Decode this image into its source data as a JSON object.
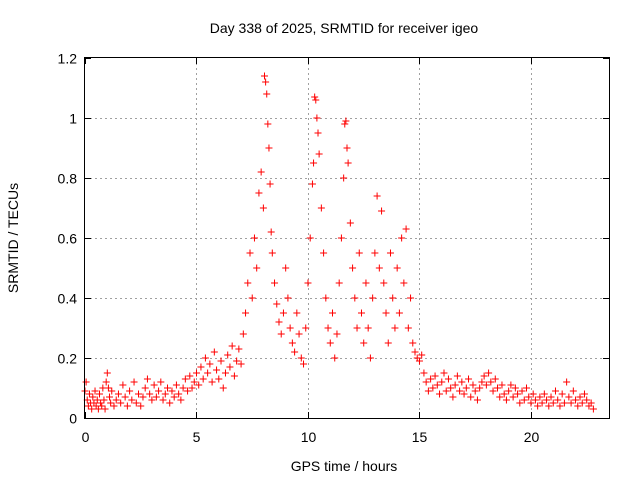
{
  "chart_data": {
    "type": "scatter",
    "title": "Day 338 of 2025, SRMTID for receiver igeo",
    "xlabel": "GPS time / hours",
    "ylabel": "SRMTID / TECUs",
    "xlim": [
      0,
      23.5
    ],
    "ylim": [
      0,
      1.2
    ],
    "x_ticks": [
      0,
      5,
      10,
      15,
      20
    ],
    "x_tick_labels": [
      "0",
      "5",
      "10",
      "15",
      "20"
    ],
    "y_ticks": [
      0,
      0.2,
      0.4,
      0.6,
      0.8,
      1.0,
      1.2
    ],
    "y_tick_labels": [
      "0",
      "0.2",
      "0.4",
      "0.6",
      "0.8",
      "1",
      "1.2"
    ],
    "grid": true,
    "marker": "+",
    "color": "#ff0000",
    "series": [
      {
        "name": "SRMTID",
        "points": [
          [
            0.0,
            0.09
          ],
          [
            0.05,
            0.12
          ],
          [
            0.1,
            0.06
          ],
          [
            0.15,
            0.04
          ],
          [
            0.2,
            0.08
          ],
          [
            0.25,
            0.05
          ],
          [
            0.3,
            0.03
          ],
          [
            0.35,
            0.07
          ],
          [
            0.4,
            0.05
          ],
          [
            0.45,
            0.09
          ],
          [
            0.5,
            0.04
          ],
          [
            0.55,
            0.06
          ],
          [
            0.6,
            0.03
          ],
          [
            0.65,
            0.08
          ],
          [
            0.7,
            0.05
          ],
          [
            0.75,
            0.04
          ],
          [
            0.8,
            0.1
          ],
          [
            0.85,
            0.06
          ],
          [
            0.9,
            0.03
          ],
          [
            0.95,
            0.12
          ],
          [
            1.0,
            0.15
          ],
          [
            1.05,
            0.1
          ],
          [
            1.1,
            0.07
          ],
          [
            1.15,
            0.05
          ],
          [
            1.2,
            0.09
          ],
          [
            1.3,
            0.04
          ],
          [
            1.4,
            0.06
          ],
          [
            1.5,
            0.08
          ],
          [
            1.6,
            0.05
          ],
          [
            1.7,
            0.11
          ],
          [
            1.8,
            0.07
          ],
          [
            1.9,
            0.04
          ],
          [
            2.0,
            0.09
          ],
          [
            2.1,
            0.06
          ],
          [
            2.2,
            0.12
          ],
          [
            2.3,
            0.05
          ],
          [
            2.4,
            0.08
          ],
          [
            2.5,
            0.04
          ],
          [
            2.6,
            0.07
          ],
          [
            2.7,
            0.1
          ],
          [
            2.8,
            0.13
          ],
          [
            2.9,
            0.08
          ],
          [
            3.0,
            0.06
          ],
          [
            3.1,
            0.11
          ],
          [
            3.2,
            0.07
          ],
          [
            3.3,
            0.09
          ],
          [
            3.4,
            0.12
          ],
          [
            3.5,
            0.06
          ],
          [
            3.6,
            0.08
          ],
          [
            3.7,
            0.1
          ],
          [
            3.8,
            0.05
          ],
          [
            3.9,
            0.09
          ],
          [
            4.0,
            0.07
          ],
          [
            4.1,
            0.11
          ],
          [
            4.2,
            0.08
          ],
          [
            4.3,
            0.06
          ],
          [
            4.4,
            0.1
          ],
          [
            4.5,
            0.13
          ],
          [
            4.6,
            0.09
          ],
          [
            4.7,
            0.14
          ],
          [
            4.8,
            0.1
          ],
          [
            4.9,
            0.12
          ],
          [
            5.0,
            0.15
          ],
          [
            5.1,
            0.11
          ],
          [
            5.2,
            0.17
          ],
          [
            5.3,
            0.13
          ],
          [
            5.4,
            0.2
          ],
          [
            5.5,
            0.15
          ],
          [
            5.6,
            0.18
          ],
          [
            5.7,
            0.12
          ],
          [
            5.8,
            0.22
          ],
          [
            5.9,
            0.16
          ],
          [
            6.0,
            0.13
          ],
          [
            6.1,
            0.19
          ],
          [
            6.2,
            0.1
          ],
          [
            6.3,
            0.15
          ],
          [
            6.4,
            0.21
          ],
          [
            6.5,
            0.17
          ],
          [
            6.6,
            0.24
          ],
          [
            6.7,
            0.14
          ],
          [
            6.8,
            0.19
          ],
          [
            6.9,
            0.23
          ],
          [
            7.0,
            0.18
          ],
          [
            7.1,
            0.28
          ],
          [
            7.2,
            0.35
          ],
          [
            7.3,
            0.45
          ],
          [
            7.4,
            0.55
          ],
          [
            7.5,
            0.4
          ],
          [
            7.6,
            0.6
          ],
          [
            7.7,
            0.5
          ],
          [
            7.8,
            0.75
          ],
          [
            7.9,
            0.82
          ],
          [
            8.0,
            0.7
          ],
          [
            8.05,
            1.14
          ],
          [
            8.1,
            1.12
          ],
          [
            8.15,
            1.08
          ],
          [
            8.2,
            0.98
          ],
          [
            8.25,
            0.9
          ],
          [
            8.3,
            0.78
          ],
          [
            8.35,
            0.62
          ],
          [
            8.4,
            0.55
          ],
          [
            8.5,
            0.45
          ],
          [
            8.6,
            0.38
          ],
          [
            8.7,
            0.32
          ],
          [
            8.8,
            0.28
          ],
          [
            8.9,
            0.35
          ],
          [
            9.0,
            0.5
          ],
          [
            9.1,
            0.4
          ],
          [
            9.2,
            0.3
          ],
          [
            9.3,
            0.25
          ],
          [
            9.4,
            0.22
          ],
          [
            9.5,
            0.35
          ],
          [
            9.6,
            0.28
          ],
          [
            9.7,
            0.2
          ],
          [
            9.8,
            0.18
          ],
          [
            9.9,
            0.3
          ],
          [
            10.0,
            0.45
          ],
          [
            10.1,
            0.6
          ],
          [
            10.2,
            0.78
          ],
          [
            10.25,
            0.85
          ],
          [
            10.3,
            1.07
          ],
          [
            10.35,
            1.06
          ],
          [
            10.4,
            1.0
          ],
          [
            10.45,
            0.95
          ],
          [
            10.5,
            0.88
          ],
          [
            10.6,
            0.7
          ],
          [
            10.7,
            0.55
          ],
          [
            10.8,
            0.4
          ],
          [
            10.9,
            0.3
          ],
          [
            11.0,
            0.25
          ],
          [
            11.1,
            0.35
          ],
          [
            11.2,
            0.2
          ],
          [
            11.3,
            0.28
          ],
          [
            11.4,
            0.45
          ],
          [
            11.5,
            0.6
          ],
          [
            11.6,
            0.8
          ],
          [
            11.65,
            0.98
          ],
          [
            11.7,
            0.99
          ],
          [
            11.75,
            0.9
          ],
          [
            11.8,
            0.85
          ],
          [
            11.9,
            0.65
          ],
          [
            12.0,
            0.5
          ],
          [
            12.1,
            0.4
          ],
          [
            12.2,
            0.3
          ],
          [
            12.3,
            0.55
          ],
          [
            12.4,
            0.35
          ],
          [
            12.5,
            0.25
          ],
          [
            12.6,
            0.45
          ],
          [
            12.7,
            0.3
          ],
          [
            12.8,
            0.2
          ],
          [
            12.9,
            0.4
          ],
          [
            13.0,
            0.55
          ],
          [
            13.1,
            0.74
          ],
          [
            13.2,
            0.5
          ],
          [
            13.3,
            0.69
          ],
          [
            13.4,
            0.45
          ],
          [
            13.5,
            0.35
          ],
          [
            13.6,
            0.25
          ],
          [
            13.7,
            0.55
          ],
          [
            13.8,
            0.4
          ],
          [
            13.9,
            0.3
          ],
          [
            14.0,
            0.5
          ],
          [
            14.1,
            0.35
          ],
          [
            14.2,
            0.6
          ],
          [
            14.3,
            0.45
          ],
          [
            14.4,
            0.63
          ],
          [
            14.5,
            0.3
          ],
          [
            14.6,
            0.4
          ],
          [
            14.7,
            0.25
          ],
          [
            14.8,
            0.22
          ],
          [
            14.9,
            0.2
          ],
          [
            15.0,
            0.19
          ],
          [
            15.1,
            0.21
          ],
          [
            15.2,
            0.15
          ],
          [
            15.3,
            0.12
          ],
          [
            15.4,
            0.09
          ],
          [
            15.5,
            0.13
          ],
          [
            15.6,
            0.1
          ],
          [
            15.7,
            0.14
          ],
          [
            15.8,
            0.11
          ],
          [
            15.9,
            0.08
          ],
          [
            16.0,
            0.12
          ],
          [
            16.1,
            0.15
          ],
          [
            16.2,
            0.09
          ],
          [
            16.3,
            0.13
          ],
          [
            16.4,
            0.1
          ],
          [
            16.5,
            0.07
          ],
          [
            16.6,
            0.11
          ],
          [
            16.7,
            0.14
          ],
          [
            16.8,
            0.09
          ],
          [
            16.9,
            0.12
          ],
          [
            17.0,
            0.08
          ],
          [
            17.1,
            0.1
          ],
          [
            17.2,
            0.13
          ],
          [
            17.3,
            0.07
          ],
          [
            17.4,
            0.11
          ],
          [
            17.5,
            0.09
          ],
          [
            17.6,
            0.06
          ],
          [
            17.7,
            0.1
          ],
          [
            17.8,
            0.12
          ],
          [
            17.9,
            0.14
          ],
          [
            18.0,
            0.11
          ],
          [
            18.1,
            0.15
          ],
          [
            18.2,
            0.12
          ],
          [
            18.3,
            0.09
          ],
          [
            18.4,
            0.13
          ],
          [
            18.5,
            0.1
          ],
          [
            18.6,
            0.07
          ],
          [
            18.7,
            0.11
          ],
          [
            18.8,
            0.08
          ],
          [
            18.9,
            0.06
          ],
          [
            19.0,
            0.09
          ],
          [
            19.1,
            0.11
          ],
          [
            19.2,
            0.07
          ],
          [
            19.3,
            0.1
          ],
          [
            19.4,
            0.08
          ],
          [
            19.5,
            0.05
          ],
          [
            19.6,
            0.09
          ],
          [
            19.7,
            0.06
          ],
          [
            19.8,
            0.1
          ],
          [
            19.9,
            0.07
          ],
          [
            20.0,
            0.05
          ],
          [
            20.1,
            0.08
          ],
          [
            20.2,
            0.06
          ],
          [
            20.3,
            0.04
          ],
          [
            20.4,
            0.07
          ],
          [
            20.5,
            0.05
          ],
          [
            20.6,
            0.08
          ],
          [
            20.7,
            0.06
          ],
          [
            20.8,
            0.04
          ],
          [
            20.9,
            0.07
          ],
          [
            21.0,
            0.05
          ],
          [
            21.1,
            0.09
          ],
          [
            21.2,
            0.06
          ],
          [
            21.3,
            0.04
          ],
          [
            21.4,
            0.08
          ],
          [
            21.5,
            0.05
          ],
          [
            21.6,
            0.12
          ],
          [
            21.7,
            0.07
          ],
          [
            21.8,
            0.05
          ],
          [
            21.9,
            0.09
          ],
          [
            22.0,
            0.06
          ],
          [
            22.1,
            0.04
          ],
          [
            22.2,
            0.07
          ],
          [
            22.3,
            0.05
          ],
          [
            22.4,
            0.08
          ],
          [
            22.5,
            0.06
          ],
          [
            22.6,
            0.04
          ],
          [
            22.7,
            0.05
          ],
          [
            22.8,
            0.03
          ]
        ]
      }
    ]
  }
}
